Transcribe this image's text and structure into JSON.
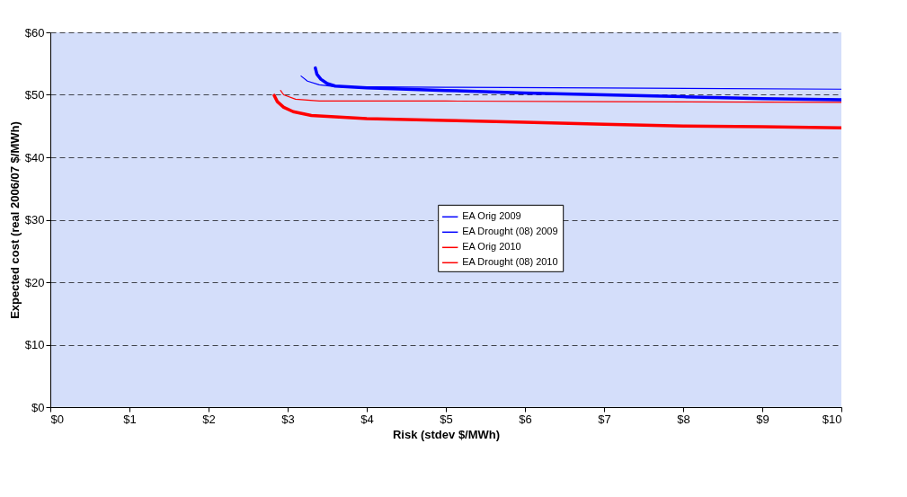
{
  "chart_data": {
    "type": "line",
    "xlabel": "Risk (stdev $/MWh)",
    "ylabel": "Expected cost (real 2006/07 $/MWh)",
    "xlim": [
      0,
      10
    ],
    "ylim": [
      0,
      60
    ],
    "xticks": [
      {
        "value": 0,
        "label": "$0"
      },
      {
        "value": 1,
        "label": "$1"
      },
      {
        "value": 2,
        "label": "$2"
      },
      {
        "value": 3,
        "label": "$3"
      },
      {
        "value": 4,
        "label": "$4"
      },
      {
        "value": 5,
        "label": "$5"
      },
      {
        "value": 6,
        "label": "$6"
      },
      {
        "value": 7,
        "label": "$7"
      },
      {
        "value": 8,
        "label": "$8"
      },
      {
        "value": 9,
        "label": "$9"
      },
      {
        "value": 10,
        "label": "$10"
      }
    ],
    "yticks": [
      {
        "value": 0,
        "label": "$0"
      },
      {
        "value": 10,
        "label": "$10"
      },
      {
        "value": 20,
        "label": "$20"
      },
      {
        "value": 30,
        "label": "$30"
      },
      {
        "value": 40,
        "label": "$40"
      },
      {
        "value": 50,
        "label": "$50"
      },
      {
        "value": 60,
        "label": "$60"
      }
    ],
    "grid": "y",
    "legend": "center",
    "marker": "none",
    "line_style": "solid",
    "series": [
      {
        "name": "EA Orig 2009",
        "color": "#0000ff",
        "x": [
          3.35,
          3.37,
          3.42,
          3.5,
          3.6,
          4,
          5,
          6,
          7,
          8,
          9,
          10
        ],
        "values": [
          54.3,
          53.3,
          52.5,
          51.8,
          51.4,
          51.1,
          50.7,
          50.3,
          50.0,
          49.7,
          49.4,
          49.2
        ]
      },
      {
        "name": "EA Drought (08) 2009",
        "color": "#0000ff",
        "x": [
          3.17,
          3.25,
          3.4,
          3.6,
          5,
          7,
          10
        ],
        "values": [
          53.0,
          52.2,
          51.6,
          51.3,
          51.2,
          51.1,
          50.9
        ]
      },
      {
        "name": "EA Orig 2010",
        "color": "#ff0000",
        "x": [
          2.83,
          2.87,
          2.95,
          3.07,
          3.3,
          4,
          5,
          6,
          7,
          8,
          9,
          10
        ],
        "values": [
          49.9,
          48.9,
          48.0,
          47.3,
          46.7,
          46.2,
          45.9,
          45.6,
          45.3,
          45.0,
          44.9,
          44.7
        ]
      },
      {
        "name": "EA Drought (08) 2010",
        "color": "#ff0000",
        "x": [
          2.91,
          2.95,
          3.1,
          3.4,
          5,
          7,
          10
        ],
        "values": [
          50.7,
          50.0,
          49.3,
          49.0,
          49.0,
          48.9,
          48.8
        ]
      }
    ]
  }
}
